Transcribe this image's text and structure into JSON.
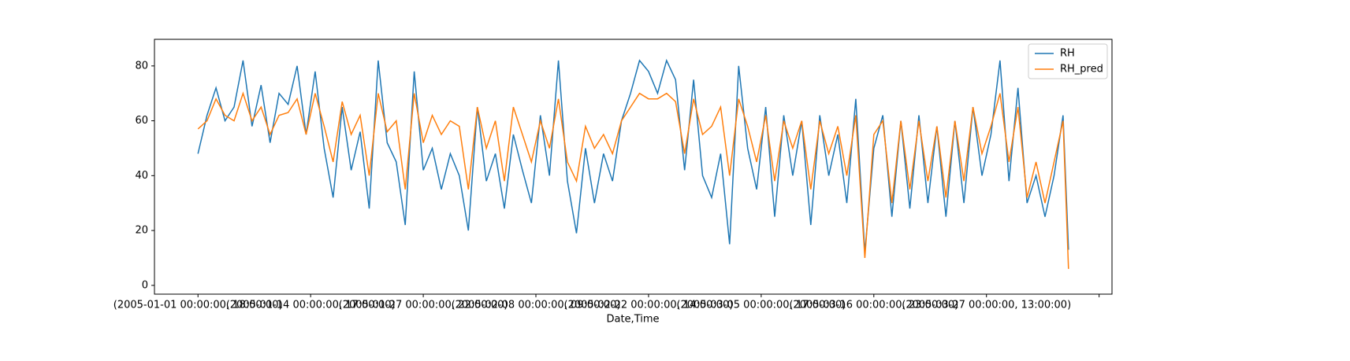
{
  "chart_data": {
    "type": "line",
    "xlabel": "Date,Time",
    "x": [
      0,
      20,
      40,
      60,
      80,
      100,
      120,
      140,
      160,
      180,
      200,
      220,
      240,
      260,
      280,
      300,
      320,
      340,
      360,
      380,
      400,
      420,
      440,
      460,
      480,
      500,
      520,
      540,
      560,
      580,
      600,
      620,
      640,
      660,
      680,
      700,
      720,
      740,
      760,
      780,
      800,
      820,
      840,
      860,
      880,
      900,
      920,
      940,
      960,
      980,
      1000,
      1020,
      1040,
      1060,
      1080,
      1100,
      1120,
      1140,
      1160,
      1180,
      1200,
      1220,
      1240,
      1260,
      1280,
      1300,
      1320,
      1340,
      1360,
      1380,
      1400,
      1420,
      1440,
      1460,
      1480,
      1500,
      1520,
      1540,
      1560,
      1580,
      1600,
      1620,
      1640,
      1660,
      1680,
      1700,
      1720,
      1740,
      1760,
      1780,
      1800,
      1820,
      1840,
      1860,
      1880,
      1900,
      1920,
      1932
    ],
    "series": [
      {
        "name": "RH",
        "color": "#1f77b4",
        "values": [
          48,
          62,
          72,
          60,
          65,
          82,
          58,
          73,
          52,
          70,
          66,
          80,
          55,
          78,
          50,
          32,
          65,
          42,
          56,
          28,
          82,
          52,
          45,
          22,
          78,
          42,
          50,
          35,
          48,
          40,
          20,
          65,
          38,
          48,
          28,
          55,
          42,
          30,
          62,
          40,
          82,
          38,
          19,
          50,
          30,
          48,
          38,
          60,
          70,
          82,
          78,
          70,
          82,
          75,
          42,
          75,
          40,
          32,
          48,
          15,
          80,
          50,
          35,
          65,
          25,
          62,
          40,
          60,
          22,
          62,
          40,
          55,
          30,
          68,
          12,
          50,
          62,
          25,
          60,
          28,
          62,
          30,
          58,
          25,
          60,
          30,
          65,
          40,
          55,
          82,
          38,
          72,
          30,
          40,
          25,
          40,
          62,
          13
        ]
      },
      {
        "name": "RH_pred",
        "color": "#ff7f0e",
        "values": [
          57,
          60,
          68,
          62,
          60,
          70,
          60,
          65,
          55,
          62,
          63,
          68,
          55,
          70,
          58,
          45,
          67,
          55,
          62,
          40,
          70,
          56,
          60,
          35,
          70,
          52,
          62,
          55,
          60,
          58,
          35,
          65,
          50,
          60,
          38,
          65,
          55,
          45,
          60,
          50,
          68,
          45,
          38,
          58,
          50,
          55,
          48,
          60,
          65,
          70,
          68,
          68,
          70,
          67,
          48,
          68,
          55,
          58,
          65,
          40,
          68,
          58,
          45,
          62,
          38,
          60,
          50,
          60,
          35,
          60,
          48,
          58,
          40,
          62,
          10,
          55,
          60,
          30,
          60,
          35,
          60,
          38,
          58,
          32,
          60,
          38,
          65,
          48,
          58,
          70,
          45,
          65,
          32,
          45,
          30,
          45,
          60,
          6
        ]
      }
    ],
    "xlim": [
      -96.6,
      2028.6
    ],
    "xticks": [
      {
        "value": 0,
        "label": "(2005-01-01 00:00:00, 18:00:00)"
      },
      {
        "value": 250,
        "label": "(2005-01-14 00:00:00, 17:00:00)"
      },
      {
        "value": 500,
        "label": "(2005-01-27 00:00:00, 22:00:00)"
      },
      {
        "value": 750,
        "label": "(2005-02-08 00:00:00, 09:00:00)"
      },
      {
        "value": 1000,
        "label": "(2005-02-22 00:00:00, 14:00:00)"
      },
      {
        "value": 1250,
        "label": "(2005-03-05 00:00:00, 17:00:00)"
      },
      {
        "value": 1500,
        "label": "(2005-03-16 00:00:00, 23:00:00)"
      },
      {
        "value": 1750,
        "label": "(2005-03-27 00:00:00, 13:00:00)"
      },
      {
        "value": 2000,
        "label": null
      }
    ],
    "ylim": [
      -3.2,
      89.7
    ],
    "yticks": [
      0,
      20,
      40,
      60,
      80
    ],
    "legend": "upper right"
  }
}
